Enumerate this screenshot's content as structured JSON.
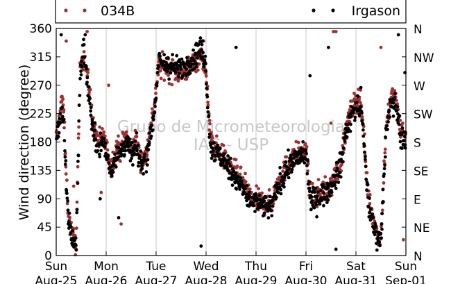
{
  "chart_data": {
    "type": "scatter",
    "title": "",
    "xlabel": "",
    "ylabel": "Wind direction (degree)",
    "ylim": [
      0,
      360
    ],
    "xlim": [
      "Aug-25 00:00",
      "Sep-01 00:00"
    ],
    "yticks": [
      0,
      45,
      90,
      135,
      180,
      225,
      270,
      315,
      360
    ],
    "ytick_labels": [
      "0",
      "45",
      "90",
      "135",
      "180",
      "225",
      "270",
      "315",
      "360"
    ],
    "right_axis_labels": [
      "N",
      "NE",
      "E",
      "SE",
      "S",
      "SW",
      "W",
      "NW",
      "N"
    ],
    "xticks": [
      {
        "day": "Sun",
        "date": "Aug-25"
      },
      {
        "day": "Mon",
        "date": "Aug-26"
      },
      {
        "day": "Tue",
        "date": "Aug-27"
      },
      {
        "day": "Wed",
        "date": "Aug-28"
      },
      {
        "day": "Thu",
        "date": "Aug-29"
      },
      {
        "day": "Fri",
        "date": "Aug-30"
      },
      {
        "day": "Sat",
        "date": "Aug-31"
      },
      {
        "day": "Sun",
        "date": "Sep-01"
      }
    ],
    "grid": "vertical",
    "legend_placement": "top",
    "watermark": [
      "Grupo de Micrometeorologia",
      "IAG - USP"
    ],
    "series": [
      {
        "name": "034B",
        "color": "#a03030",
        "x_unit": "days since Aug-25 00:00",
        "trend": [
          [
            0.0,
            185
          ],
          [
            0.05,
            205
          ],
          [
            0.1,
            250
          ],
          [
            0.15,
            230
          ],
          [
            0.2,
            120
          ],
          [
            0.25,
            60
          ],
          [
            0.32,
            30
          ],
          [
            0.4,
            20
          ],
          [
            0.48,
            300
          ],
          [
            0.55,
            320
          ],
          [
            0.6,
            300
          ],
          [
            0.68,
            250
          ],
          [
            0.75,
            200
          ],
          [
            0.85,
            180
          ],
          [
            0.95,
            190
          ],
          [
            1.0,
            170
          ],
          [
            1.1,
            140
          ],
          [
            1.2,
            170
          ],
          [
            1.3,
            170
          ],
          [
            1.4,
            190
          ],
          [
            1.5,
            170
          ],
          [
            1.6,
            180
          ],
          [
            1.7,
            150
          ],
          [
            1.8,
            160
          ],
          [
            1.95,
            230
          ],
          [
            2.05,
            300
          ],
          [
            2.3,
            295
          ],
          [
            2.5,
            290
          ],
          [
            2.7,
            300
          ],
          [
            2.9,
            320
          ],
          [
            2.98,
            300
          ],
          [
            3.05,
            230
          ],
          [
            3.1,
            180
          ],
          [
            3.3,
            160
          ],
          [
            3.5,
            140
          ],
          [
            3.7,
            120
          ],
          [
            3.9,
            90
          ],
          [
            4.1,
            85
          ],
          [
            4.3,
            80
          ],
          [
            4.45,
            120
          ],
          [
            4.6,
            140
          ],
          [
            4.8,
            160
          ],
          [
            5.0,
            165
          ],
          [
            5.1,
            90
          ],
          [
            5.3,
            100
          ],
          [
            5.5,
            110
          ],
          [
            5.7,
            150
          ],
          [
            5.8,
            200
          ],
          [
            5.95,
            240
          ],
          [
            6.1,
            250
          ],
          [
            6.25,
            90
          ],
          [
            6.4,
            40
          ],
          [
            6.5,
            30
          ],
          [
            6.6,
            200
          ],
          [
            6.7,
            250
          ],
          [
            6.8,
            250
          ],
          [
            6.9,
            200
          ],
          [
            7.0,
            190
          ]
        ],
        "outliers": [
          [
            0.2,
            340
          ],
          [
            0.35,
            110
          ],
          [
            0.62,
            355
          ],
          [
            1.05,
            270
          ],
          [
            1.3,
            50
          ],
          [
            5.55,
            355
          ],
          [
            5.6,
            355
          ],
          [
            5.5,
            210
          ],
          [
            6.5,
            330
          ],
          [
            6.95,
            25
          ],
          [
            0.9,
            100
          ],
          [
            2.95,
            340
          ]
        ]
      },
      {
        "name": "Irgason",
        "color": "#000000",
        "x_unit": "days since Aug-25 00:00",
        "trend": [
          [
            0.0,
            180
          ],
          [
            0.05,
            200
          ],
          [
            0.1,
            240
          ],
          [
            0.15,
            210
          ],
          [
            0.2,
            110
          ],
          [
            0.25,
            55
          ],
          [
            0.32,
            30
          ],
          [
            0.4,
            15
          ],
          [
            0.48,
            290
          ],
          [
            0.55,
            330
          ],
          [
            0.6,
            290
          ],
          [
            0.68,
            240
          ],
          [
            0.75,
            190
          ],
          [
            0.85,
            175
          ],
          [
            0.95,
            180
          ],
          [
            1.0,
            160
          ],
          [
            1.1,
            135
          ],
          [
            1.2,
            160
          ],
          [
            1.3,
            165
          ],
          [
            1.4,
            180
          ],
          [
            1.5,
            160
          ],
          [
            1.6,
            170
          ],
          [
            1.7,
            145
          ],
          [
            1.8,
            155
          ],
          [
            1.95,
            220
          ],
          [
            2.05,
            305
          ],
          [
            2.3,
            300
          ],
          [
            2.5,
            295
          ],
          [
            2.7,
            310
          ],
          [
            2.9,
            330
          ],
          [
            2.98,
            310
          ],
          [
            3.05,
            220
          ],
          [
            3.1,
            170
          ],
          [
            3.3,
            155
          ],
          [
            3.5,
            135
          ],
          [
            3.7,
            110
          ],
          [
            3.9,
            85
          ],
          [
            4.1,
            80
          ],
          [
            4.3,
            75
          ],
          [
            4.45,
            110
          ],
          [
            4.6,
            135
          ],
          [
            4.8,
            155
          ],
          [
            5.0,
            160
          ],
          [
            5.1,
            85
          ],
          [
            5.3,
            95
          ],
          [
            5.5,
            105
          ],
          [
            5.7,
            145
          ],
          [
            5.8,
            195
          ],
          [
            5.95,
            230
          ],
          [
            6.1,
            240
          ],
          [
            6.25,
            80
          ],
          [
            6.4,
            35
          ],
          [
            6.5,
            25
          ],
          [
            6.6,
            190
          ],
          [
            6.7,
            240
          ],
          [
            6.8,
            240
          ],
          [
            6.9,
            190
          ],
          [
            7.0,
            180
          ]
        ],
        "outliers": [
          [
            0.1,
            350
          ],
          [
            0.58,
            350
          ],
          [
            0.88,
            90
          ],
          [
            2.9,
            15
          ],
          [
            3.6,
            330
          ],
          [
            5.08,
            285
          ],
          [
            5.45,
            330
          ],
          [
            5.6,
            10
          ],
          [
            6.45,
            20
          ],
          [
            6.85,
            350
          ],
          [
            6.98,
            290
          ],
          [
            1.25,
            60
          ]
        ]
      }
    ]
  }
}
